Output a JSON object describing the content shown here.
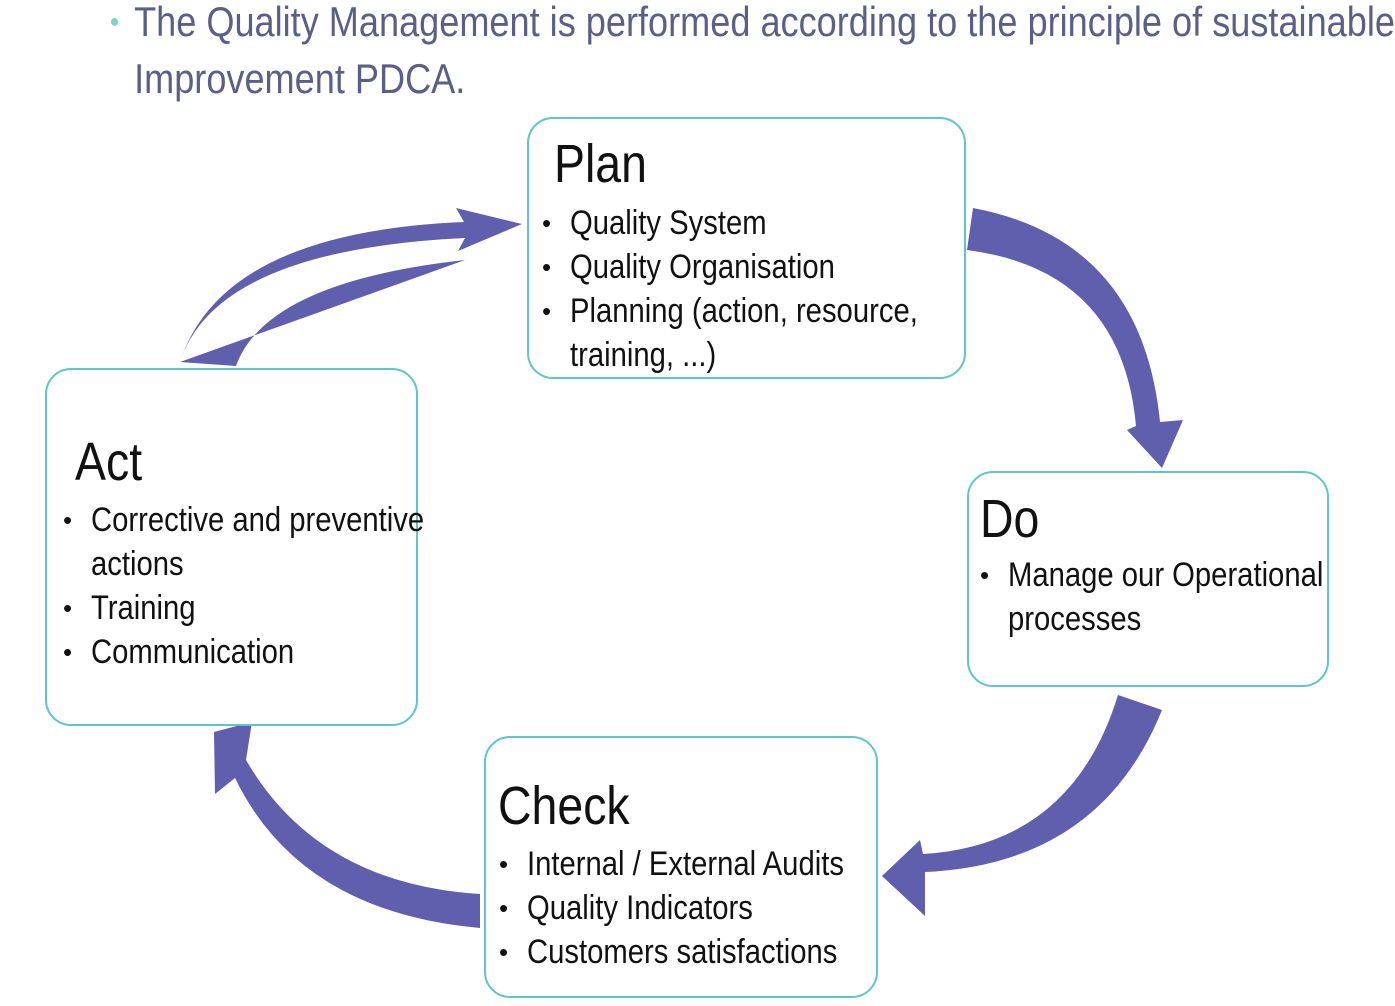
{
  "intro": {
    "line1": "The Quality Management is performed according to the principle of sustainable",
    "line2": "Improvement PDCA."
  },
  "colors": {
    "arrow": "#5f5fae",
    "box_border": "#5fc4cf",
    "intro_text": "#5b5f86",
    "bullet_accent": "#7fd3c3"
  },
  "plan": {
    "title": "Plan",
    "items": [
      "Quality System",
      "Quality Organisation",
      "Planning (action, resource,",
      "training, ...)"
    ]
  },
  "do": {
    "title": "Do",
    "items": [
      "Manage our Operational",
      "processes"
    ]
  },
  "check": {
    "title": "Check",
    "items": [
      "Internal / External Audits",
      "Quality Indicators",
      "Customers satisfactions"
    ]
  },
  "act": {
    "title": "Act",
    "items": [
      "Corrective and preventive",
      "actions",
      "Training",
      "Communication"
    ]
  }
}
